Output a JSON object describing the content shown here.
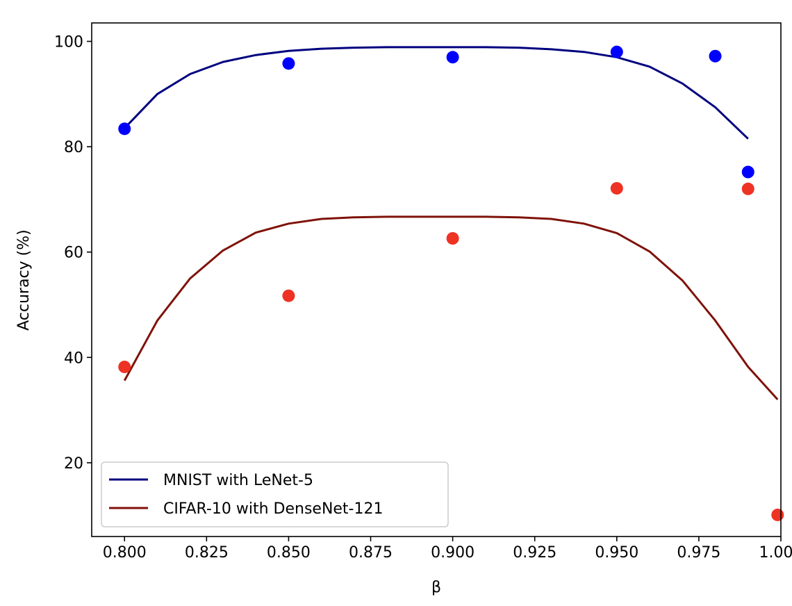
{
  "chart_data": {
    "type": "scatter",
    "xlabel": "β",
    "ylabel": "Accuracy (%)",
    "xlim": [
      0.79,
      1.0
    ],
    "ylim": [
      6,
      103.5
    ],
    "xticks": [
      "0.800",
      "0.825",
      "0.850",
      "0.875",
      "0.900",
      "0.925",
      "0.950",
      "0.975",
      "1.000"
    ],
    "yticks": [
      "20",
      "40",
      "60",
      "80",
      "100"
    ],
    "grid": false,
    "legend_position": "lower-left",
    "series": [
      {
        "name": "MNIST with LeNet-5",
        "line_color": "#00007f",
        "point_color": "#0000ff",
        "points": {
          "x": [
            0.8,
            0.85,
            0.9,
            0.95,
            0.98,
            0.99
          ],
          "y": [
            83.4,
            95.8,
            97.0,
            98.0,
            97.2,
            75.2
          ]
        },
        "fit": {
          "x": [
            0.8,
            0.81,
            0.82,
            0.83,
            0.84,
            0.85,
            0.86,
            0.87,
            0.88,
            0.89,
            0.9,
            0.91,
            0.92,
            0.93,
            0.94,
            0.95,
            0.96,
            0.97,
            0.98,
            0.99
          ],
          "y": [
            83.5,
            90.0,
            93.8,
            96.1,
            97.4,
            98.2,
            98.6,
            98.8,
            98.9,
            98.9,
            98.9,
            98.9,
            98.8,
            98.5,
            98.0,
            97.0,
            95.2,
            92.0,
            87.5,
            81.5
          ]
        }
      },
      {
        "name": "CIFAR-10 with DenseNet-121",
        "line_color": "#7f1209",
        "point_color": "#ee3224",
        "points": {
          "x": [
            0.8,
            0.85,
            0.9,
            0.95,
            0.99,
            0.999
          ],
          "y": [
            38.2,
            51.7,
            62.6,
            72.1,
            72.0,
            10.1
          ]
        },
        "fit": {
          "x": [
            0.8,
            0.81,
            0.82,
            0.83,
            0.84,
            0.85,
            0.86,
            0.87,
            0.88,
            0.89,
            0.9,
            0.91,
            0.92,
            0.93,
            0.94,
            0.95,
            0.96,
            0.97,
            0.98,
            0.99,
            0.999
          ],
          "y": [
            35.6,
            47.0,
            55.0,
            60.3,
            63.7,
            65.4,
            66.3,
            66.6,
            66.7,
            66.7,
            66.7,
            66.7,
            66.6,
            66.3,
            65.4,
            63.6,
            60.1,
            54.6,
            47.0,
            38.2,
            32.0
          ]
        }
      }
    ]
  }
}
